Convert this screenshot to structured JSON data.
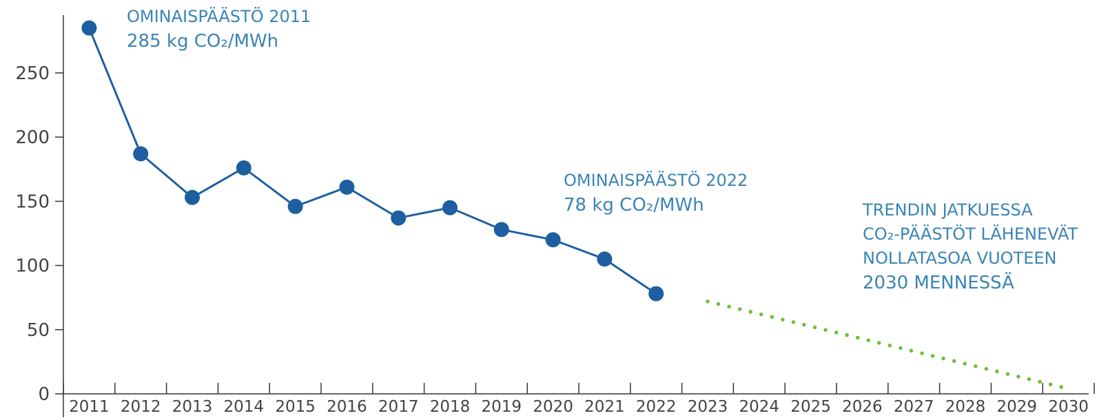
{
  "chart_data": {
    "type": "line",
    "title": "",
    "xlabel": "",
    "ylabel": "",
    "ylim": [
      0,
      295
    ],
    "y_ticks": [
      0,
      50,
      100,
      150,
      200,
      250
    ],
    "x_categories": [
      "2011",
      "2012",
      "2013",
      "2014",
      "2015",
      "2016",
      "2017",
      "2018",
      "2019",
      "2020",
      "2021",
      "2022",
      "2023",
      "2024",
      "2025",
      "2026",
      "2027",
      "2028",
      "2029",
      "2030"
    ],
    "series": [
      {
        "style": "solid-with-markers",
        "color": "#1d5fa0",
        "x": [
          "2011",
          "2012",
          "2013",
          "2014",
          "2015",
          "2016",
          "2017",
          "2018",
          "2019",
          "2020",
          "2021",
          "2022"
        ],
        "values": [
          285,
          187,
          153,
          176,
          146,
          161,
          137,
          145,
          128,
          120,
          105,
          78
        ]
      },
      {
        "style": "dotted",
        "color": "#6cbf3a",
        "x": [
          "2023",
          "2030"
        ],
        "values": [
          72,
          4
        ]
      }
    ],
    "annotations": [
      {
        "anchor": "2011",
        "lines": [
          "OMINAISPÄÄSTÖ 2011",
          "285 kg CO₂/MWh"
        ]
      },
      {
        "anchor": "2022",
        "lines": [
          "OMINAISPÄÄSTÖ 2022",
          "78 kg CO₂/MWh"
        ]
      },
      {
        "anchor": "trend",
        "lines": [
          "TRENDIN JATKUESSA",
          "CO₂-PÄÄSTÖT LÄHENEVÄT",
          "NOLLATASOA VUOTEEN",
          "2030 MENNESSÄ"
        ]
      }
    ]
  }
}
